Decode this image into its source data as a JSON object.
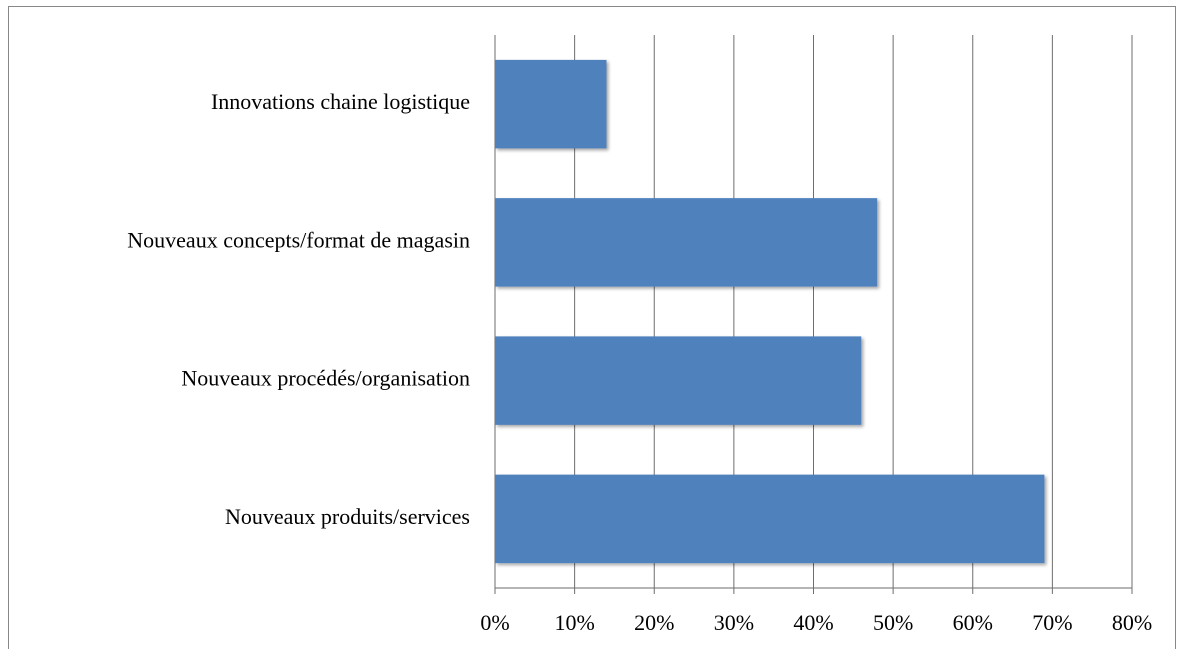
{
  "chart_data": {
    "type": "bar",
    "orientation": "horizontal",
    "categories": [
      "Innovations chaine logistique",
      "Nouveaux concepts/format de magasin",
      "Nouveaux procédés/organisation",
      "Nouveaux produits/services"
    ],
    "values": [
      14,
      48,
      46,
      69
    ],
    "color": "#4f81bd",
    "xlim": [
      0,
      80
    ],
    "xticks": [
      {
        "value": 0,
        "label": "0%"
      },
      {
        "value": 10,
        "label": "10%"
      },
      {
        "value": 20,
        "label": "20%"
      },
      {
        "value": 30,
        "label": "30%"
      },
      {
        "value": 40,
        "label": "40%"
      },
      {
        "value": 50,
        "label": "50%"
      },
      {
        "value": 60,
        "label": "60%"
      },
      {
        "value": 70,
        "label": "70%"
      },
      {
        "value": 80,
        "label": "80%"
      }
    ],
    "grid": true
  }
}
